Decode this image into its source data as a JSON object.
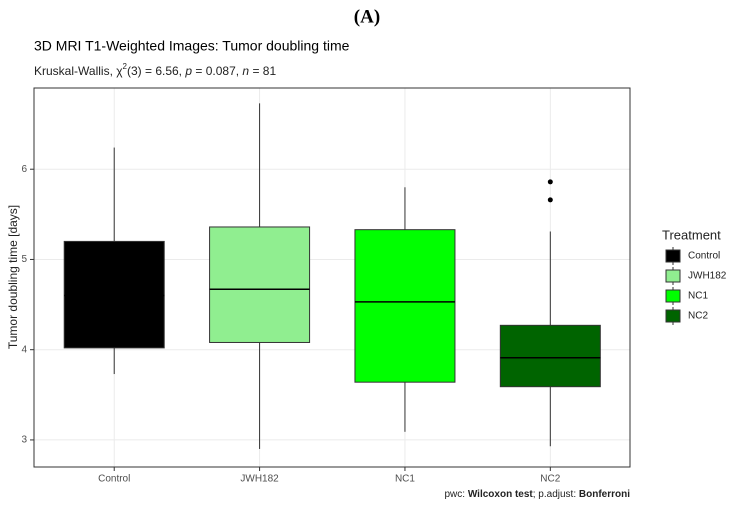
{
  "header": "(A)",
  "chart_data": {
    "type": "box",
    "title": "3D MRI T1-Weighted Images: Tumor doubling time",
    "subtitle_parts": [
      "Kruskal-Wallis, χ",
      "2",
      "(3) = 6.56, ",
      "p",
      " = 0.087, ",
      "n",
      " = 81"
    ],
    "caption_parts": [
      "pwc: ",
      "Wilcoxon test",
      "; p.adjust: ",
      "Bonferroni"
    ],
    "y_label": "Tumor doubling time [days]",
    "categories": [
      "Control",
      "JWH182",
      "NC1",
      "NC2"
    ],
    "legend_title": "Treatment",
    "legend_position": "right",
    "series": [
      {
        "name": "Control",
        "color": "#000000",
        "whisker_low": 3.73,
        "q1": 4.02,
        "median": 4.6,
        "q3": 5.2,
        "whisker_high": 6.24,
        "outliers": []
      },
      {
        "name": "JWH182",
        "color": "#90ee90",
        "whisker_low": 2.9,
        "q1": 4.08,
        "median": 4.67,
        "q3": 5.36,
        "whisker_high": 6.73,
        "outliers": []
      },
      {
        "name": "NC1",
        "color": "#00ff00",
        "whisker_low": 3.09,
        "q1": 3.64,
        "median": 4.53,
        "q3": 5.33,
        "whisker_high": 5.8,
        "outliers": []
      },
      {
        "name": "NC2",
        "color": "#006400",
        "whisker_low": 2.93,
        "q1": 3.59,
        "median": 3.91,
        "q3": 4.27,
        "whisker_high": 5.31,
        "outliers": [
          5.66,
          5.86
        ]
      }
    ],
    "ylim": [
      2.7,
      6.9
    ],
    "yticks": [
      3,
      4,
      5,
      6
    ],
    "grid": true
  }
}
